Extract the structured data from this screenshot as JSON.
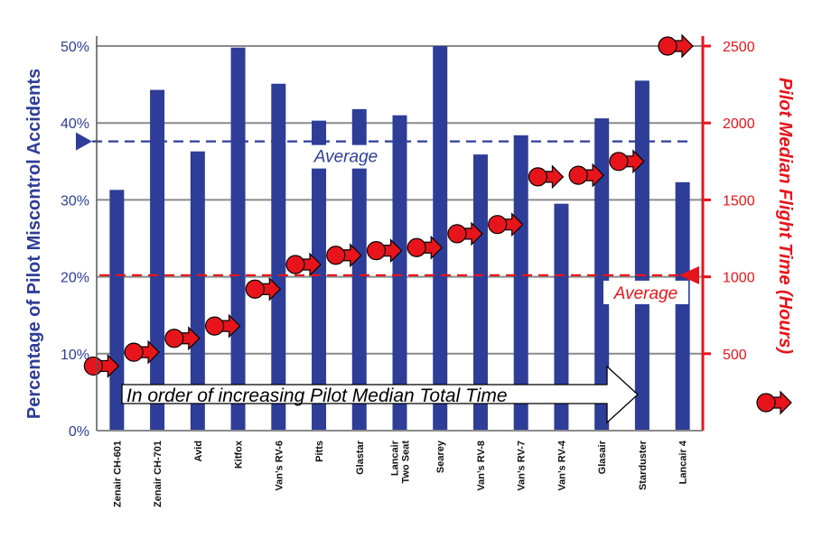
{
  "colors": {
    "bar": "#2E3D98",
    "marker": "#E8141B",
    "left_axis": "#2E3D98",
    "right_axis": "#E8141B",
    "grid": "#8A8A8A"
  },
  "chart_data": {
    "type": "bar",
    "categories": [
      "Zenair CH-601",
      "Zenair CH-701",
      "Avid",
      "Kitfox",
      "Van's RV-6",
      "Pitts",
      "Glastar",
      "Lancair Two Seat",
      "Searey",
      "Van's RV-8",
      "Van's RV-7",
      "Van's RV-4",
      "Glasair",
      "Starduster",
      "Lancair 4"
    ],
    "category_lines": [
      [
        "Zenair CH-601"
      ],
      [
        "Zenair CH-701"
      ],
      [
        "Avid"
      ],
      [
        "Kitfox"
      ],
      [
        "Van’s RV-6"
      ],
      [
        "Pitts"
      ],
      [
        "Glastar"
      ],
      [
        "Lancair",
        "Two Seat"
      ],
      [
        "Searey"
      ],
      [
        "Van’s RV-8"
      ],
      [
        "Van’s RV-7"
      ],
      [
        "Van’s RV-4"
      ],
      [
        "Glasair"
      ],
      [
        "Starduster"
      ],
      [
        "Lancair 4"
      ]
    ],
    "series": [
      {
        "axis": "left",
        "mark": "bar",
        "values": [
          31.3,
          44.3,
          36.3,
          49.8,
          45.1,
          40.3,
          41.8,
          41.0,
          50.0,
          35.9,
          38.4,
          29.5,
          40.6,
          45.5,
          32.3
        ]
      },
      {
        "axis": "right",
        "mark": "arrow-marker",
        "values": [
          420,
          510,
          600,
          680,
          920,
          1080,
          1140,
          1170,
          1190,
          1280,
          1340,
          1650,
          1660,
          1750,
          null
        ]
      }
    ],
    "ylabel": "Percentage of Pilot Miscontrol Accidents",
    "ylabel_right": "Pilot Median Flight Time (Hours)",
    "ylim": [
      0,
      50
    ],
    "ylim_right": [
      0,
      2500
    ],
    "yticks": [
      "0%",
      "10%",
      "20%",
      "30%",
      "40%",
      "50%"
    ],
    "yticks_right": [
      "500",
      "1000",
      "1500",
      "2000",
      "2500"
    ],
    "grid": true,
    "averages": [
      {
        "axis": "left",
        "value": 37.6,
        "label": "Average"
      },
      {
        "axis": "right",
        "value": 1010,
        "label": "Average"
      }
    ],
    "annotation": "In order of increasing Pilot Median Total Time"
  }
}
